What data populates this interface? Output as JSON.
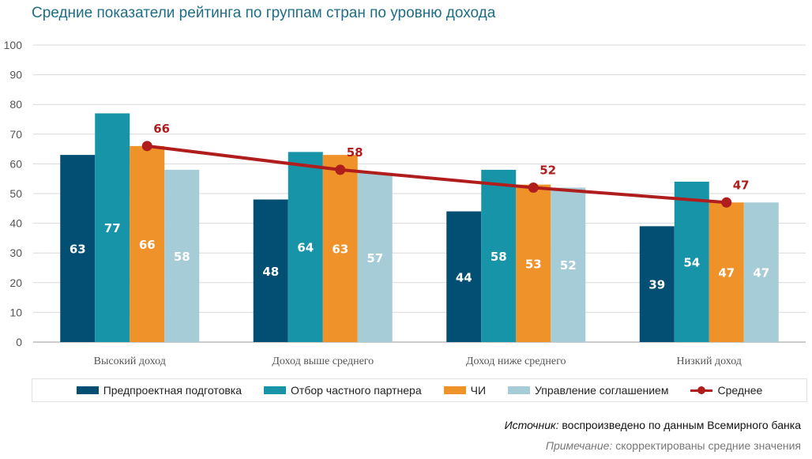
{
  "title": "Средние показатели рейтинга по группам стран по уровню дохода",
  "chart_data": {
    "type": "bar",
    "categories": [
      "Высокий доход",
      "Доход выше среднего",
      "Доход ниже среднего",
      "Низкий доход"
    ],
    "series": [
      {
        "name": "Предпроектная подготовка",
        "values": [
          63,
          48,
          44,
          39
        ],
        "color": "#024f73"
      },
      {
        "name": "Отбор частного партнера",
        "values": [
          77,
          64,
          58,
          54
        ],
        "color": "#1794a8"
      },
      {
        "name": "ЧИ",
        "values": [
          66,
          63,
          53,
          47
        ],
        "color": "#f0922a"
      },
      {
        "name": "Управление соглашением",
        "values": [
          58,
          57,
          52,
          47
        ],
        "color": "#a5ccd7"
      }
    ],
    "line_series": {
      "name": "Среднее",
      "values": [
        66,
        58,
        52,
        47
      ],
      "color": "#b01d1d"
    },
    "ylim": [
      0,
      100
    ],
    "yticks": [
      0,
      10,
      20,
      30,
      40,
      50,
      60,
      70,
      80,
      90,
      100
    ],
    "grid": true,
    "legend": "bottom"
  },
  "legend": {
    "items": [
      {
        "label": "Предпроектная подготовка",
        "color": "#024f73"
      },
      {
        "label": "Отбор частного партнера",
        "color": "#1794a8"
      },
      {
        "label": "ЧИ",
        "color": "#f0922a"
      },
      {
        "label": "Управление соглашением",
        "color": "#a5ccd7"
      }
    ],
    "line_label": "Среднее"
  },
  "source": {
    "prefix": "Источник:",
    "text": " воспроизведено по данным Всемирного банка"
  },
  "note": {
    "prefix": "Примечание:",
    "text": " скорректированы средние значения"
  }
}
